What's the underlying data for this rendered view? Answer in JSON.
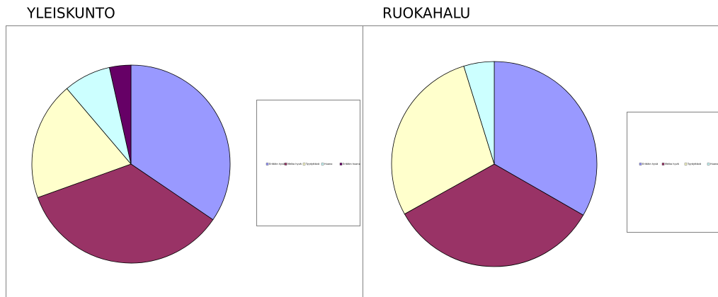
{
  "chart_data": [
    {
      "type": "pie",
      "title": "YLEISKUNTO",
      "categories": [
        "Erittäin hyvä",
        "Melko hyvä",
        "Tyydyttävä",
        "Huono",
        "Erittäin huono"
      ],
      "values": [
        34.5,
        35,
        19.3,
        7.7,
        3.5
      ],
      "colors": [
        "#9999ff",
        "#993366",
        "#ffffcc",
        "#ccffff",
        "#660066"
      ]
    },
    {
      "type": "pie",
      "title": "RUOKAHALU",
      "categories": [
        "Erittäin hyvä",
        "Melko hyvä",
        "Tyydyttävä",
        "Huono"
      ],
      "values": [
        33.3,
        33.6,
        28.3,
        4.8
      ],
      "colors": [
        "#9999ff",
        "#993366",
        "#ffffcc",
        "#ccffff"
      ]
    }
  ]
}
